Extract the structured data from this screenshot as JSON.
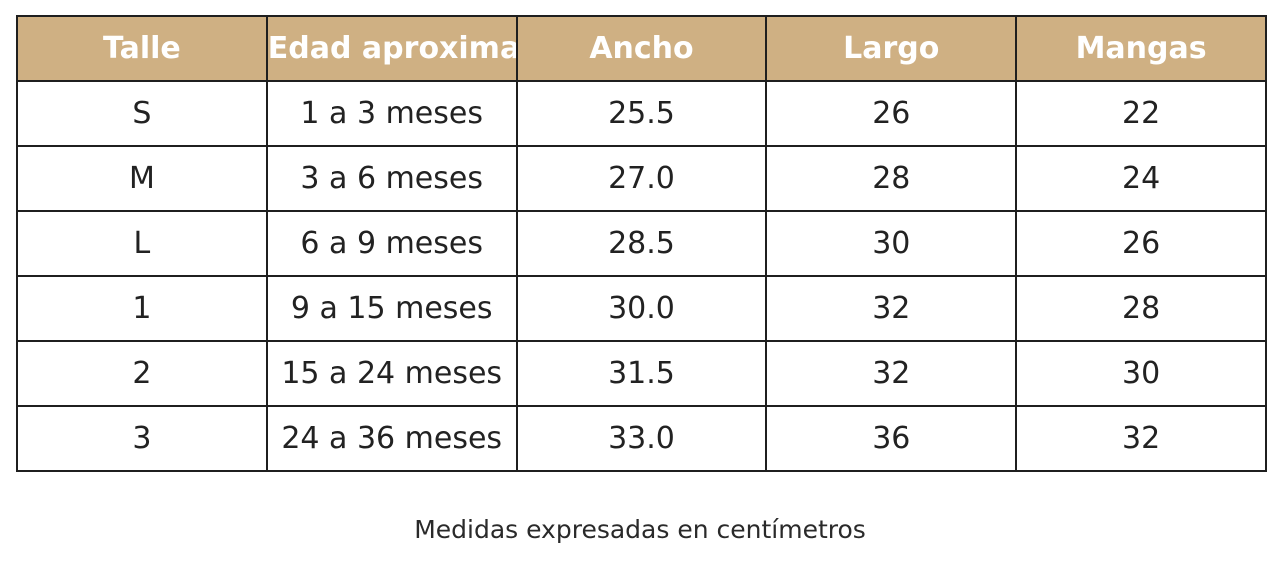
{
  "table": {
    "header_bg": "#cfb083",
    "headers": [
      "Talle",
      "Edad aproximada",
      "Ancho",
      "Largo",
      "Mangas"
    ],
    "rows": [
      [
        "S",
        "1 a 3 meses",
        "25.5",
        "26",
        "22"
      ],
      [
        "M",
        "3 a 6 meses",
        "27.0",
        "28",
        "24"
      ],
      [
        "L",
        "6 a 9 meses",
        "28.5",
        "30",
        "26"
      ],
      [
        "1",
        "9 a 15 meses",
        "30.0",
        "32",
        "28"
      ],
      [
        "2",
        "15 a 24 meses",
        "31.5",
        "32",
        "30"
      ],
      [
        "3",
        "24 a 36 meses",
        "33.0",
        "36",
        "32"
      ]
    ]
  },
  "caption": "Medidas expresadas en centímetros"
}
